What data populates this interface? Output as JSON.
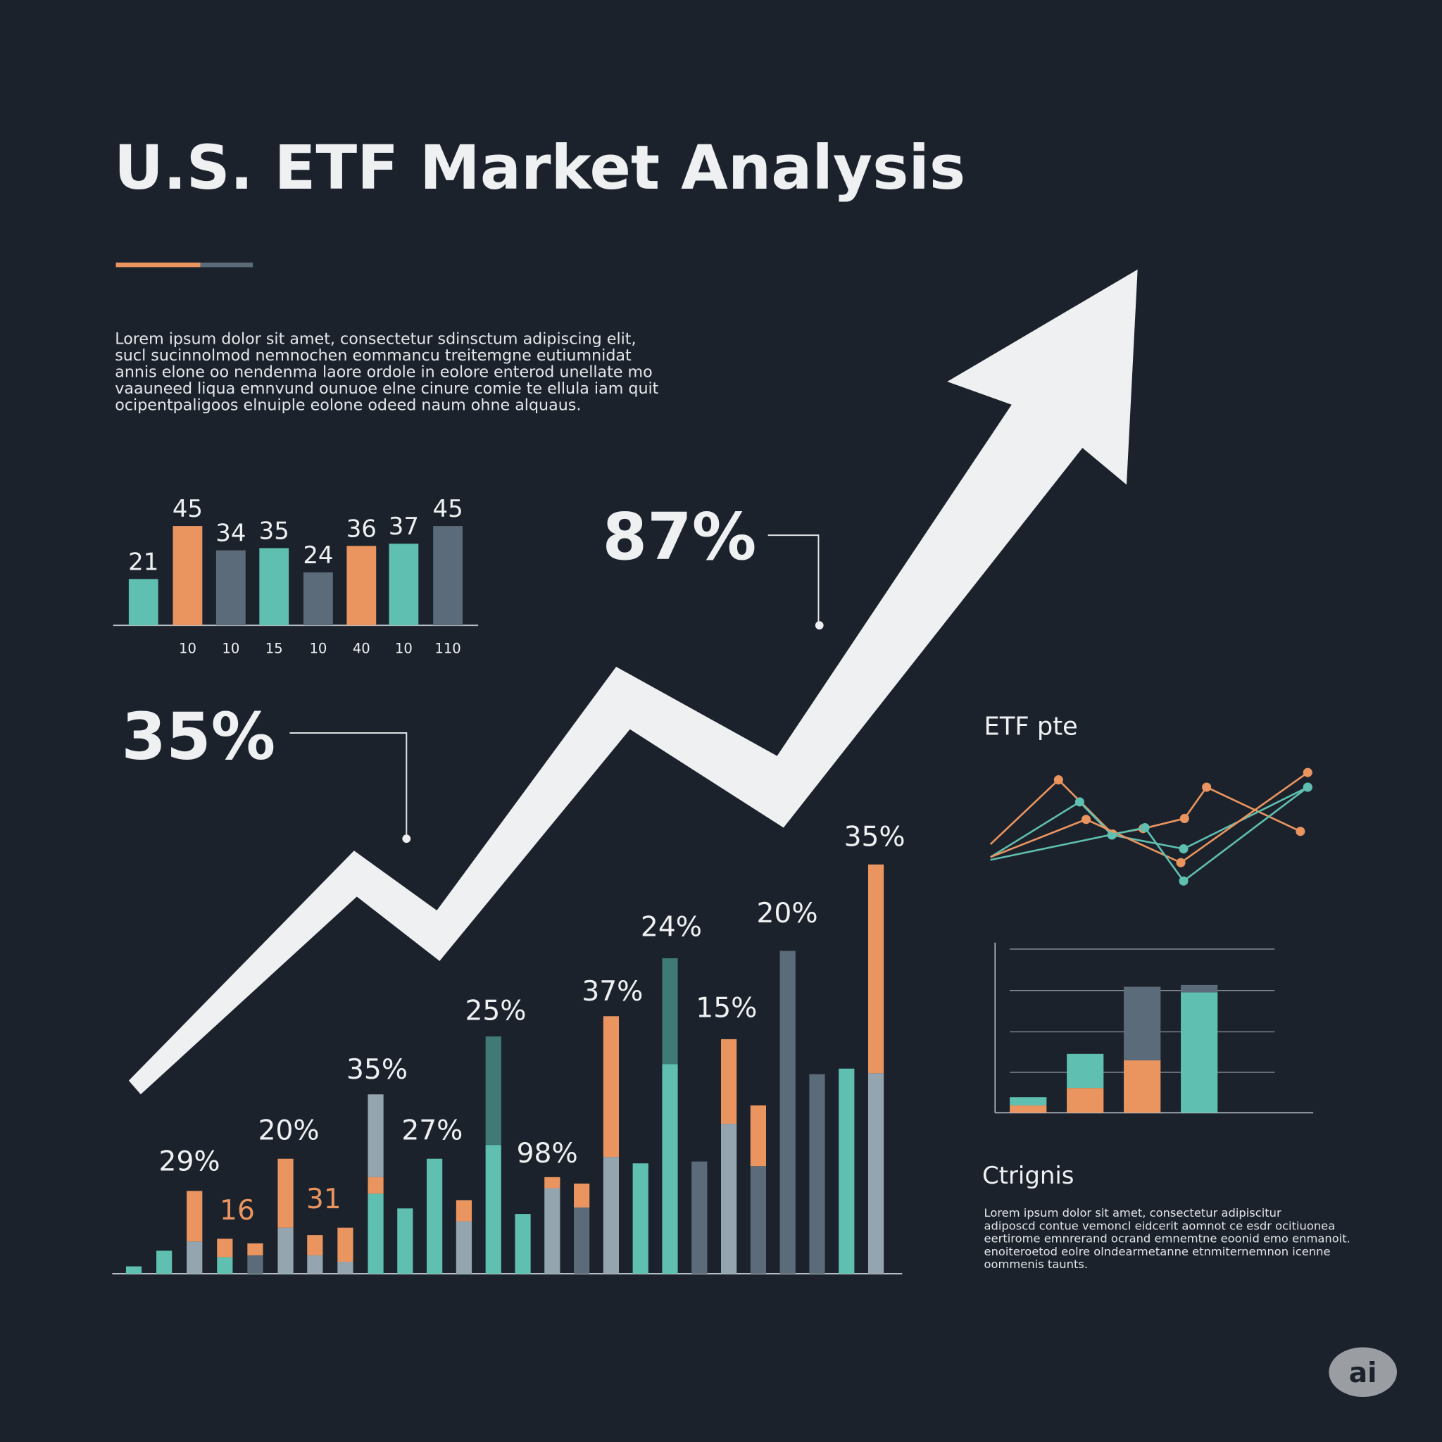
{
  "title": "U.S. ETF Market Analysis",
  "intro": [
    "Lorem ipsum dolor sit amet, consectetur sdinsctum adipiscing elit,",
    "sucl sucinnolmod nemnochen eommancu treitemgne eutiumnidat",
    "annis elone oo nendenma laore ordole in eolore enterod unellate mo",
    "vaauneed liqua emnvund ounuoe elne cinure comie te ellula iam quit",
    "ocipentpaligoos elnuiple eolone odeed naum ohne alquaus."
  ],
  "callouts": [
    "87%",
    "35%"
  ],
  "chart_data": {
    "type": "bar",
    "values": [
      21,
      45,
      34,
      35,
      24,
      36,
      37,
      45
    ],
    "categories": [
      null,
      "10",
      "10",
      "15",
      "10",
      "40",
      "10",
      "110"
    ],
    "colors": [
      "#5fbfb0",
      "#ea9560",
      "#5b6b7a",
      "#5fbfb0",
      "#5b6b7a",
      "#ea9560",
      "#5fbfb0",
      "#5b6b7a"
    ]
  },
  "bar_labels": [
    "29%",
    "16",
    "20%",
    "31",
    "35%",
    "27%",
    "25%",
    "98%",
    "37%",
    "24%",
    "15%",
    "20%",
    "35%"
  ],
  "side_chart_title": "ETF pte",
  "section_title": "Ctrignis",
  "section_text": [
    "Lorem ipsum dolor sit amet, consectetur adipiscitur",
    "adiposcd contue vemoncl eidcerit aomnot ce esdr ocitiuonea",
    "eertirome emnrerand ocrand emnemtne eoonid emo enmanoit.",
    "enoiteroetod eolre olndearmetanne etnmiternemnon icenne",
    "oommenis taunts."
  ],
  "badge": "ai"
}
